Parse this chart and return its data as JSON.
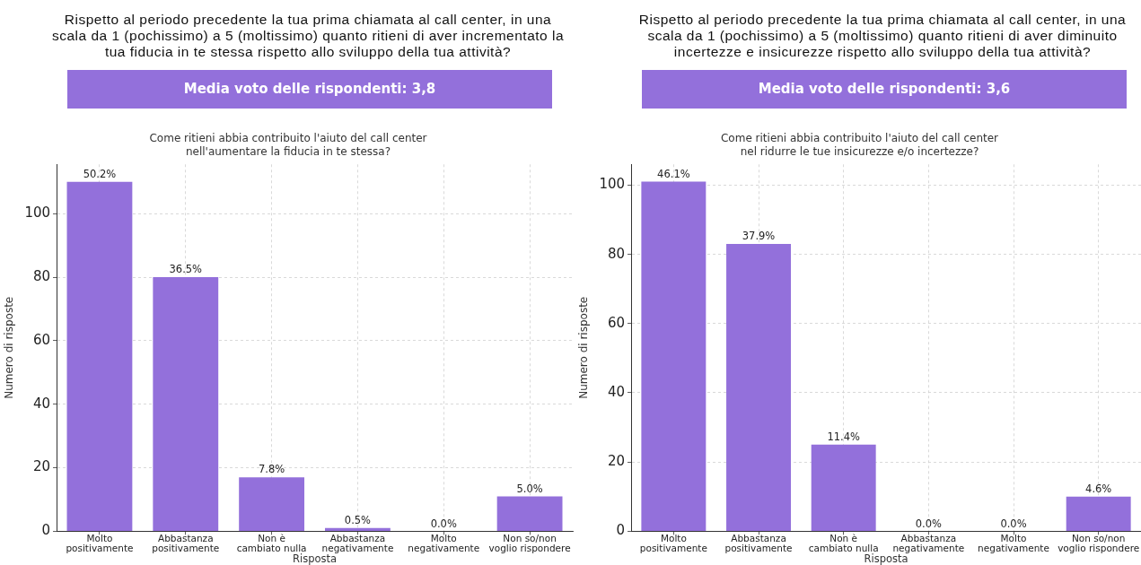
{
  "chart_data": [
    {
      "type": "bar",
      "title": "Rispetto al periodo precedente la tua prima chiamata al call center, in una scala da 1 (pochissimo) a 5 (moltissimo) quanto ritieni di aver incrementato la tua fiducia in te stessa rispetto allo sviluppo della tua attività?",
      "subtitle": "Come ritieni abbia contribuito l'aiuto del call center\nnell'aumentare la fiducia in te stessa?",
      "xlabel": "Risposta",
      "ylabel": "Numero di risposte",
      "categories": [
        "Molto\npositivamente",
        "Abbastanza\npositivamente",
        "Non è\ncambiato nulla",
        "Abbastanza\nnegativamente",
        "Molto\nnegativamente",
        "Non so/non\nvoglio rispondere"
      ],
      "values": [
        110,
        80,
        17,
        1,
        0,
        11
      ],
      "color": "#9370db",
      "annotations": [
        "Media voto delle rispondenti: 3,8",
        {
          "text": "50.2%",
          "x": "Molto\npositivamente",
          "y": 110
        },
        {
          "text": "36.5%",
          "x": "Abbastanza\npositivamente",
          "y": 80
        },
        {
          "text": "7.8%",
          "x": "Non è\ncambiato nulla",
          "y": 17
        },
        {
          "text": "0.5%",
          "x": "Abbastanza\nnegativamente",
          "y": 1
        },
        {
          "text": "0.0%",
          "x": "Molto\nnegativamente",
          "y": 0
        },
        {
          "text": "5.0%",
          "x": "Non so/non\nvoglio rispondere",
          "y": 11
        }
      ],
      "ylim": [
        0,
        115.5
      ],
      "yticks": [
        0,
        20,
        40,
        60,
        80,
        100
      ],
      "grid": true
    },
    {
      "type": "bar",
      "title": "Rispetto al periodo precedente la tua prima chiamata al call center, in una scala da 1 (pochissimo) a 5 (moltissimo) quanto ritieni di aver diminuito incertezze e insicurezze rispetto allo sviluppo della tua attività?",
      "subtitle": "Come ritieni abbia contribuito l'aiuto del call center\nnel ridurre le tue insicurezze e/o incertezze?",
      "xlabel": "Risposta",
      "ylabel": "Numero di risposte",
      "categories": [
        "Molto\npositivamente",
        "Abbastanza\npositivamente",
        "Non è\ncambiato nulla",
        "Abbastanza\nnegativamente",
        "Molto\nnegativamente",
        "Non so/non\nvoglio rispondere"
      ],
      "values": [
        101,
        83,
        25,
        0,
        0,
        10
      ],
      "color": "#9370db",
      "annotations": [
        "Media voto delle rispondenti: 3,6",
        {
          "text": "46.1%",
          "x": "Molto\npositivamente",
          "y": 101
        },
        {
          "text": "37.9%",
          "x": "Abbastanza\npositivamente",
          "y": 83
        },
        {
          "text": "11.4%",
          "x": "Non è\ncambiato nulla",
          "y": 25
        },
        {
          "text": "0.0%",
          "x": "Abbastanza\nnegativamente",
          "y": 0
        },
        {
          "text": "0.0%",
          "x": "Molto\nnegativamente",
          "y": 0
        },
        {
          "text": "4.6%",
          "x": "Non so/non\nvoglio rispondere",
          "y": 10
        }
      ],
      "ylim": [
        0,
        106
      ],
      "yticks": [
        0,
        20,
        40,
        60,
        80,
        100
      ],
      "grid": true
    }
  ]
}
